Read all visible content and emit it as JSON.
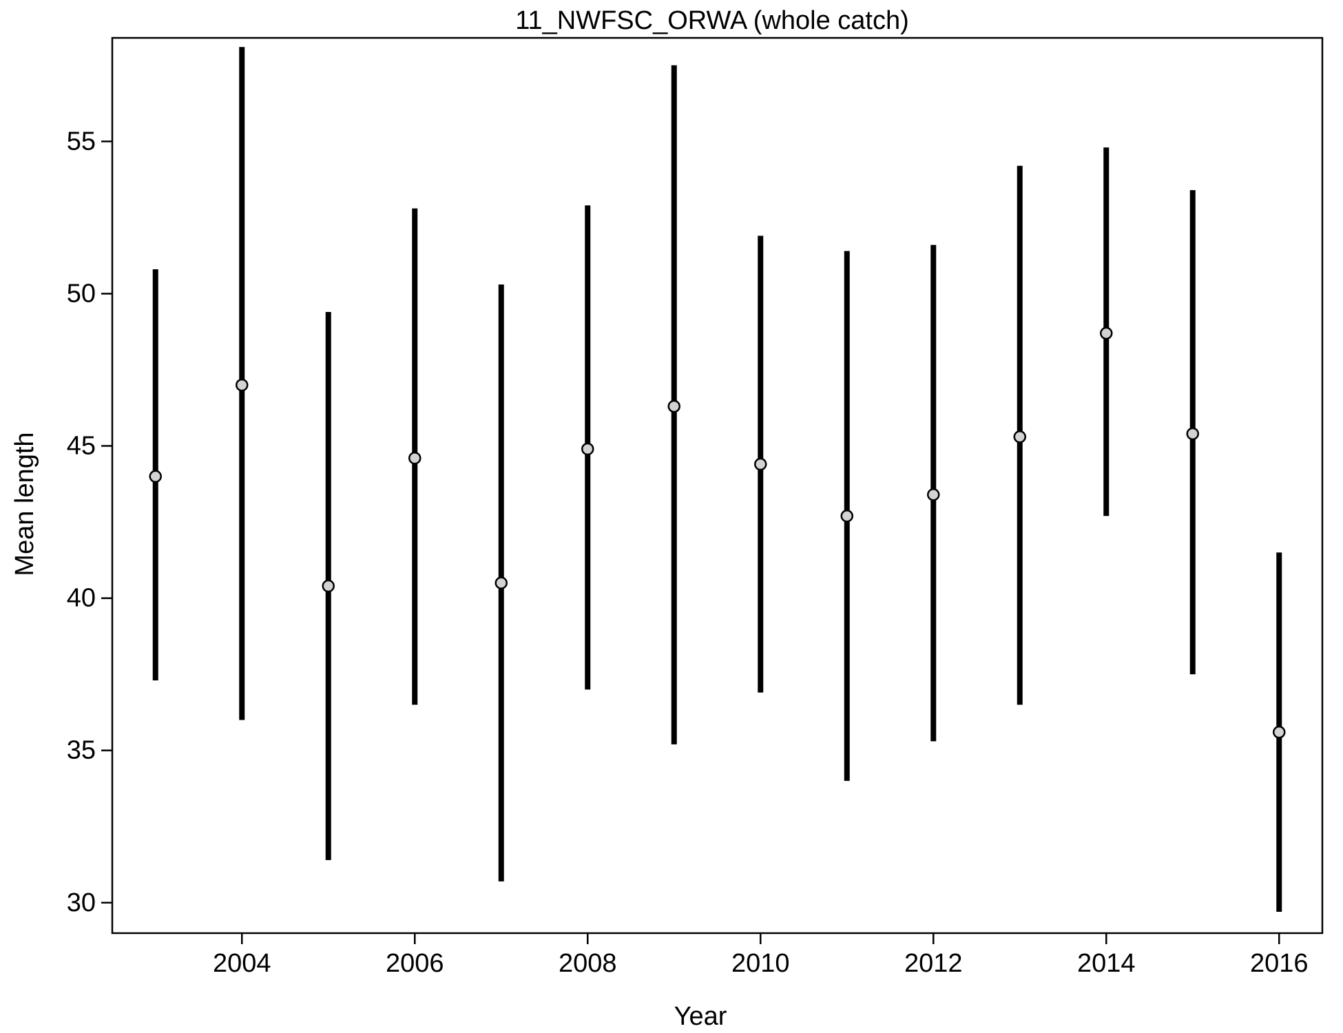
{
  "chart_data": {
    "type": "scatter",
    "title": "11_NWFSC_ORWA (whole catch)",
    "xlabel": "Year",
    "ylabel": "Mean length",
    "xlim": [
      2002.5,
      2016.5
    ],
    "ylim": [
      29.0,
      58.4
    ],
    "xticks": [
      2004,
      2006,
      2008,
      2010,
      2012,
      2014,
      2016
    ],
    "yticks": [
      30,
      35,
      40,
      45,
      50,
      55
    ],
    "grid": false,
    "legend": "none",
    "x": [
      2003,
      2004,
      2005,
      2006,
      2007,
      2008,
      2009,
      2010,
      2011,
      2012,
      2013,
      2014,
      2015,
      2016
    ],
    "series": [
      {
        "values": [
          44.0,
          47.0,
          40.4,
          44.6,
          40.5,
          44.9,
          46.3,
          44.4,
          42.7,
          43.4,
          45.3,
          48.7,
          45.4,
          35.6
        ],
        "lower": [
          37.3,
          36.0,
          31.4,
          36.5,
          30.7,
          37.0,
          35.2,
          36.9,
          34.0,
          35.3,
          36.5,
          42.7,
          37.5,
          29.7
        ],
        "upper": [
          50.8,
          58.1,
          49.4,
          52.8,
          50.3,
          52.9,
          57.5,
          51.9,
          51.4,
          51.6,
          54.2,
          54.8,
          53.4,
          41.5
        ]
      }
    ],
    "colors": {
      "error_bar": "#000000",
      "point_fill": "#d3d3d3",
      "point_stroke": "#000000",
      "axis": "#000000"
    }
  }
}
